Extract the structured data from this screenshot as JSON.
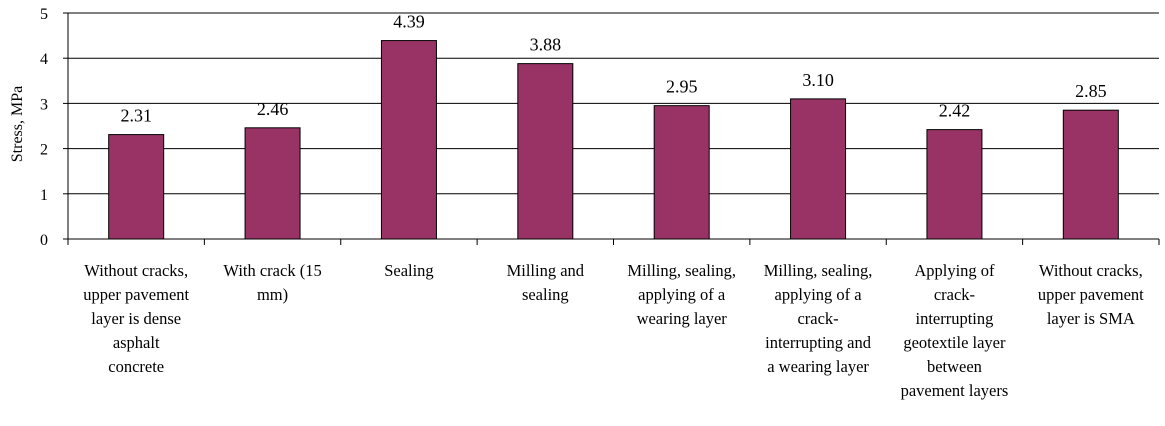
{
  "chart_data": {
    "type": "bar",
    "title": "",
    "xlabel": "",
    "ylabel": "Stress, MPa",
    "ylim": [
      0,
      5
    ],
    "yticks": [
      "0",
      "1",
      "2",
      "3",
      "4",
      "5"
    ],
    "grid": true,
    "legend": "none",
    "bar_color": "#993366",
    "categories": [
      "Without cracks, upper pavement layer is dense asphalt concrete",
      "With crack (15 mm)",
      "Sealing",
      "Milling and sealing",
      "Milling, sealing, applying of a wearing layer",
      "Milling, sealing, applying of a crack-interrupting and a wearing layer",
      "Applying of crack-interrupting geotextile layer between pavement layers",
      "Without cracks, upper pavement layer is SMA"
    ],
    "category_lines": [
      [
        "Without cracks,",
        "upper pavement",
        "layer is dense",
        "asphalt",
        "concrete"
      ],
      [
        "With crack (15",
        "mm)"
      ],
      [
        "Sealing"
      ],
      [
        "Milling and",
        "sealing"
      ],
      [
        "Milling, sealing,",
        "applying of a",
        "wearing layer"
      ],
      [
        "Milling, sealing,",
        "applying of a",
        "crack-",
        "interrupting and",
        "a wearing layer"
      ],
      [
        "Applying of",
        "crack-",
        "interrupting",
        "geotextile layer",
        "between",
        "pavement layers"
      ],
      [
        "Without cracks,",
        "upper pavement",
        "layer is SMA"
      ]
    ],
    "values": [
      2.31,
      2.46,
      4.39,
      3.88,
      2.95,
      3.1,
      2.42,
      2.85
    ],
    "data_labels": [
      "2.31",
      "2.46",
      "4.39",
      "3.88",
      "2.95",
      "3.10",
      "2.42",
      "2.85"
    ]
  }
}
